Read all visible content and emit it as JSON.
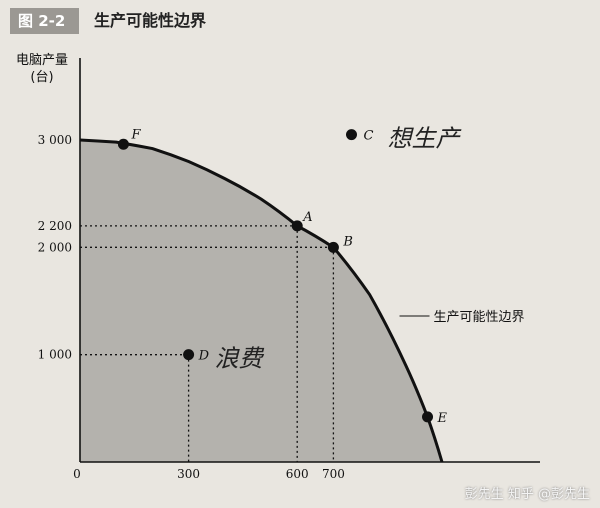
{
  "header": {
    "figure_label": "图 2-2",
    "title": "生产可能性边界"
  },
  "watermark": "彭先生 知乎 @彭先生",
  "chart_data": {
    "type": "line",
    "title": "生产可能性边界",
    "ylabel_line1": "电脑产量",
    "ylabel_line2": "(台)",
    "xlabel": "",
    "xlim": [
      0,
      1000
    ],
    "ylim": [
      0,
      3800
    ],
    "x_ticks": [
      0,
      300,
      600,
      700
    ],
    "x_tick_labels": [
      "0",
      "300",
      "600",
      "700"
    ],
    "y_ticks": [
      1000,
      2000,
      2200,
      3000
    ],
    "y_tick_labels": [
      "1 000",
      "2 000",
      "2 200",
      "3 000"
    ],
    "frontier_label": "生产可能性边界",
    "grid": false,
    "frontier": {
      "x": [
        0,
        100,
        200,
        300,
        400,
        500,
        600,
        700,
        800,
        900,
        960,
        1000
      ],
      "y": [
        3000,
        2980,
        2920,
        2800,
        2640,
        2450,
        2200,
        2000,
        1560,
        900,
        420,
        0
      ]
    },
    "points": [
      {
        "label": "F",
        "x": 120,
        "y": 2960
      },
      {
        "label": "A",
        "x": 600,
        "y": 2200
      },
      {
        "label": "B",
        "x": 700,
        "y": 2000
      },
      {
        "label": "C",
        "x": 750,
        "y": 3050
      },
      {
        "label": "D",
        "x": 300,
        "y": 1000
      },
      {
        "label": "E",
        "x": 960,
        "y": 420
      }
    ],
    "annotations": {
      "C": "想生产",
      "D": "浪费"
    }
  }
}
